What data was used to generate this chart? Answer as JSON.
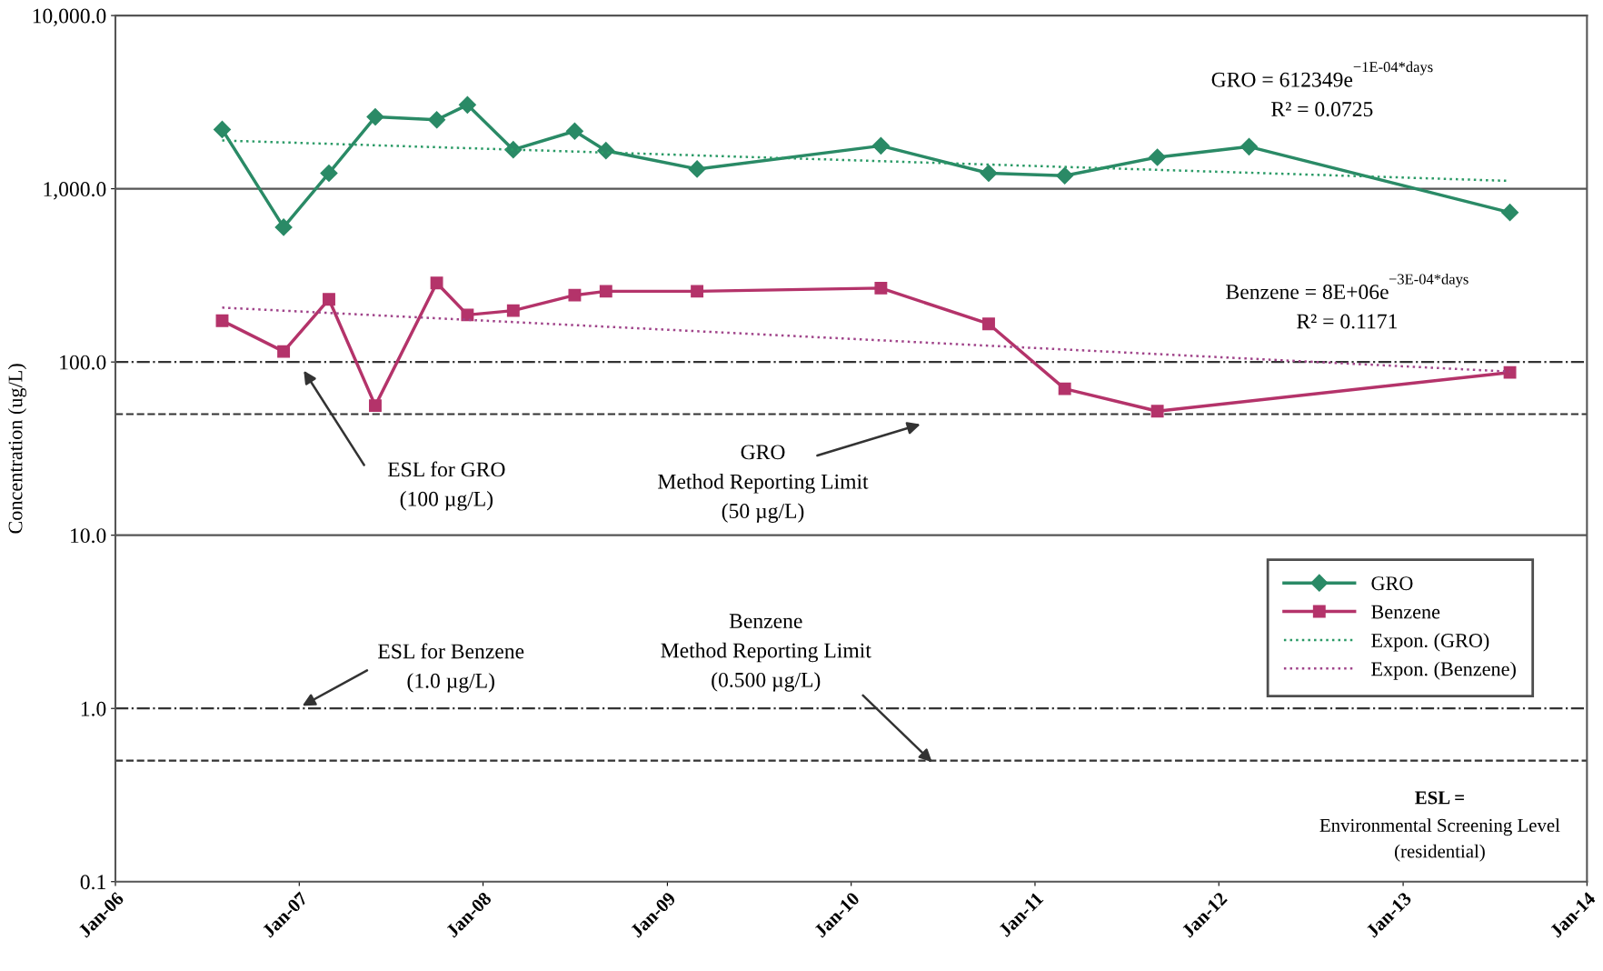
{
  "chart_data": {
    "type": "line",
    "ylabel": "Concentration (ug/L)",
    "series": [
      {
        "name": "GRO",
        "color": "#2a8a66",
        "marker": "diamond",
        "line_style": "solid",
        "x": [
          "2006-08",
          "2006-12",
          "2007-03",
          "2007-06",
          "2007-10",
          "2007-12",
          "2008-03",
          "2008-07",
          "2008-09",
          "2009-03",
          "2010-03",
          "2010-10",
          "2011-03",
          "2011-09",
          "2012-03",
          "2013-08"
        ],
        "values": [
          2200,
          600,
          1230,
          2600,
          2500,
          3050,
          1680,
          2150,
          1660,
          1300,
          1770,
          1230,
          1190,
          1520,
          1750,
          730
        ]
      },
      {
        "name": "Benzene",
        "color": "#b4336a",
        "marker": "square",
        "line_style": "solid",
        "x": [
          "2006-08",
          "2006-12",
          "2007-03",
          "2007-06",
          "2007-10",
          "2007-12",
          "2008-03",
          "2008-07",
          "2008-09",
          "2009-03",
          "2010-03",
          "2010-10",
          "2011-03",
          "2011-09",
          "2013-08"
        ],
        "values": [
          173,
          115,
          230,
          56,
          286,
          187,
          198,
          243,
          256,
          256,
          267,
          166,
          70,
          52,
          87
        ]
      },
      {
        "name": "Expon. (GRO)",
        "color": "#2a9a66",
        "marker": "none",
        "line_style": "dotted",
        "x": [
          "2006-08",
          "2013-08"
        ],
        "values": [
          1900,
          1110
        ]
      },
      {
        "name": "Expon. (Benzene)",
        "color": "#a0448a",
        "marker": "none",
        "line_style": "dotted",
        "x": [
          "2006-08",
          "2013-08"
        ],
        "values": [
          206,
          88
        ]
      }
    ],
    "log": "y",
    "xlim": [
      "2006-01",
      "2014-01"
    ],
    "xticks": [
      {
        "value": "2006-01",
        "label": "Jan-06"
      },
      {
        "value": "2007-01",
        "label": "Jan-07"
      },
      {
        "value": "2008-01",
        "label": "Jan-08"
      },
      {
        "value": "2009-01",
        "label": "Jan-09"
      },
      {
        "value": "2010-01",
        "label": "Jan-10"
      },
      {
        "value": "2011-01",
        "label": "Jan-11"
      },
      {
        "value": "2012-01",
        "label": "Jan-12"
      },
      {
        "value": "2013-01",
        "label": "Jan-13"
      },
      {
        "value": "2014-01",
        "label": "Jan-14"
      }
    ],
    "ylim": [
      0.1,
      10000
    ],
    "yticks": [
      {
        "value": 0.1,
        "label": "0.1"
      },
      {
        "value": 1,
        "label": "1.0"
      },
      {
        "value": 10,
        "label": "10.0"
      },
      {
        "value": 100,
        "label": "100.0"
      },
      {
        "value": 1000,
        "label": "1,000.0"
      },
      {
        "value": 10000,
        "label": "10,000.0"
      }
    ],
    "ref_lines": [
      {
        "axis": "y",
        "value": 1000,
        "line_style": "solid",
        "color": "#555555"
      },
      {
        "axis": "y",
        "value": 10,
        "line_style": "solid",
        "color": "#555555"
      },
      {
        "axis": "y",
        "value": 100,
        "line_style": "dashdot",
        "color": "#333333"
      },
      {
        "axis": "y",
        "value": 50,
        "line_style": "dashed",
        "color": "#333333"
      },
      {
        "axis": "y",
        "value": 1,
        "line_style": "dashdot",
        "color": "#333333"
      },
      {
        "axis": "y",
        "value": 0.5,
        "line_style": "dashed",
        "color": "#333333"
      }
    ],
    "annotations": [
      "ESL for GRO\n(100 µg/L)",
      "GRO\nMethod Reporting Limit\n(50 µg/L)",
      "ESL for Benzene\n(1.0 µg/L)",
      "Benzene\nMethod Reporting Limit\n(0.500 µg/L)",
      "GRO = 612349e$^{−1E-04*days}$\nR² = 0.0725",
      "Benzene = 8E+06e$^{−3E-04*days}$\nR² = 0.1171",
      "ESL =",
      "Environmental Screening Level\n(residential)"
    ],
    "legend": "right"
  }
}
